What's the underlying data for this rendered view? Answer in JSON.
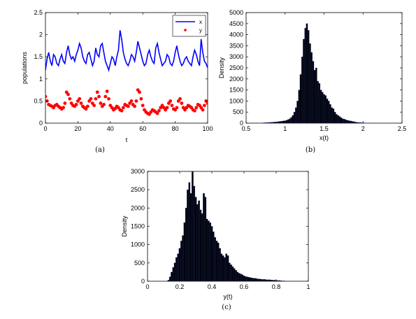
{
  "colors": {
    "x_series": "#0000ff",
    "y_series": "#ff0000",
    "bars": "#000000",
    "bar_edge": "#1f2f8f"
  },
  "chart_data": [
    {
      "panel": "a",
      "caption": "(a)",
      "type": "line",
      "xlabel": "t",
      "ylabel": "populations",
      "xlim": [
        0,
        100
      ],
      "ylim": [
        0,
        2.5
      ],
      "xticks": [
        0,
        20,
        40,
        60,
        80,
        100
      ],
      "yticks": [
        0,
        0.5,
        1,
        1.5,
        2,
        2.5
      ],
      "legend": {
        "placement": "top-right",
        "entries": [
          "x",
          "y"
        ]
      },
      "series": [
        {
          "name": "x",
          "style": "line",
          "x": [
            0,
            1,
            2,
            3,
            4,
            5,
            6,
            7,
            8,
            9,
            10,
            11,
            12,
            13,
            14,
            15,
            16,
            17,
            18,
            19,
            20,
            21,
            22,
            23,
            24,
            25,
            26,
            27,
            28,
            29,
            30,
            31,
            32,
            33,
            34,
            35,
            36,
            37,
            38,
            39,
            40,
            41,
            42,
            43,
            44,
            45,
            46,
            47,
            48,
            49,
            50,
            51,
            52,
            53,
            54,
            55,
            56,
            57,
            58,
            59,
            60,
            61,
            62,
            63,
            64,
            65,
            66,
            67,
            68,
            69,
            70,
            71,
            72,
            73,
            74,
            75,
            76,
            77,
            78,
            79,
            80,
            81,
            82,
            83,
            84,
            85,
            86,
            87,
            88,
            89,
            90,
            91,
            92,
            93,
            94,
            95,
            96,
            97,
            98,
            99,
            100
          ],
          "values": [
            1.2,
            1.45,
            1.6,
            1.4,
            1.3,
            1.55,
            1.5,
            1.35,
            1.3,
            1.45,
            1.55,
            1.4,
            1.35,
            1.6,
            1.75,
            1.55,
            1.45,
            1.5,
            1.4,
            1.55,
            1.65,
            1.8,
            1.7,
            1.5,
            1.4,
            1.35,
            1.55,
            1.6,
            1.45,
            1.3,
            1.4,
            1.7,
            1.55,
            1.5,
            1.75,
            1.8,
            1.6,
            1.4,
            1.3,
            1.2,
            1.35,
            1.5,
            1.45,
            1.3,
            1.5,
            1.65,
            2.1,
            1.9,
            1.6,
            1.45,
            1.35,
            1.3,
            1.4,
            1.55,
            1.5,
            1.4,
            1.6,
            1.85,
            1.7,
            1.55,
            1.4,
            1.3,
            1.35,
            1.55,
            1.65,
            1.5,
            1.4,
            1.35,
            1.7,
            1.8,
            1.6,
            1.45,
            1.3,
            1.35,
            1.4,
            1.55,
            1.5,
            1.35,
            1.3,
            1.4,
            1.6,
            1.75,
            1.55,
            1.4,
            1.3,
            1.35,
            1.45,
            1.5,
            1.4,
            1.35,
            1.3,
            1.5,
            1.65,
            1.55,
            1.4,
            1.3,
            1.9,
            1.6,
            1.4,
            1.35,
            1.25
          ]
        },
        {
          "name": "y",
          "style": "markers",
          "x": [
            0,
            1,
            2,
            3,
            4,
            5,
            6,
            7,
            8,
            9,
            10,
            11,
            12,
            13,
            14,
            15,
            16,
            17,
            18,
            19,
            20,
            21,
            22,
            23,
            24,
            25,
            26,
            27,
            28,
            29,
            30,
            31,
            32,
            33,
            34,
            35,
            36,
            37,
            38,
            39,
            40,
            41,
            42,
            43,
            44,
            45,
            46,
            47,
            48,
            49,
            50,
            51,
            52,
            53,
            54,
            55,
            56,
            57,
            58,
            59,
            60,
            61,
            62,
            63,
            64,
            65,
            66,
            67,
            68,
            69,
            70,
            71,
            72,
            73,
            74,
            75,
            76,
            77,
            78,
            79,
            80,
            81,
            82,
            83,
            84,
            85,
            86,
            87,
            88,
            89,
            90,
            91,
            92,
            93,
            94,
            95,
            96,
            97,
            98,
            99,
            100
          ],
          "values": [
            0.6,
            0.5,
            0.42,
            0.4,
            0.38,
            0.35,
            0.4,
            0.42,
            0.38,
            0.35,
            0.32,
            0.35,
            0.45,
            0.7,
            0.65,
            0.55,
            0.45,
            0.4,
            0.38,
            0.42,
            0.5,
            0.55,
            0.45,
            0.38,
            0.35,
            0.32,
            0.38,
            0.5,
            0.55,
            0.45,
            0.4,
            0.55,
            0.7,
            0.6,
            0.45,
            0.38,
            0.42,
            0.6,
            0.72,
            0.55,
            0.4,
            0.35,
            0.3,
            0.33,
            0.38,
            0.35,
            0.3,
            0.28,
            0.35,
            0.42,
            0.4,
            0.38,
            0.45,
            0.5,
            0.42,
            0.38,
            0.5,
            0.75,
            0.7,
            0.55,
            0.4,
            0.3,
            0.25,
            0.22,
            0.2,
            0.25,
            0.3,
            0.28,
            0.25,
            0.22,
            0.28,
            0.35,
            0.4,
            0.35,
            0.3,
            0.35,
            0.45,
            0.5,
            0.4,
            0.32,
            0.3,
            0.35,
            0.5,
            0.55,
            0.45,
            0.35,
            0.3,
            0.35,
            0.4,
            0.38,
            0.35,
            0.3,
            0.28,
            0.35,
            0.42,
            0.4,
            0.35,
            0.3,
            0.4,
            0.5,
            0.45
          ]
        }
      ]
    },
    {
      "panel": "b",
      "caption": "(b)",
      "type": "bar",
      "xlabel": "x(t)",
      "ylabel": "Density",
      "xlim": [
        0.5,
        2.5
      ],
      "ylim": [
        0,
        5000
      ],
      "xticks": [
        0.5,
        1,
        1.5,
        2,
        2.5
      ],
      "yticks": [
        0,
        500,
        1000,
        1500,
        2000,
        2500,
        3000,
        3500,
        4000,
        4500,
        5000
      ],
      "bin_width": 0.02,
      "x": [
        0.7,
        0.72,
        0.74,
        0.76,
        0.78,
        0.8,
        0.82,
        0.84,
        0.86,
        0.88,
        0.9,
        0.92,
        0.94,
        0.96,
        0.98,
        1.0,
        1.02,
        1.04,
        1.06,
        1.08,
        1.1,
        1.12,
        1.14,
        1.16,
        1.18,
        1.2,
        1.22,
        1.24,
        1.26,
        1.28,
        1.3,
        1.32,
        1.34,
        1.36,
        1.38,
        1.4,
        1.42,
        1.44,
        1.46,
        1.48,
        1.5,
        1.52,
        1.54,
        1.56,
        1.58,
        1.6,
        1.62,
        1.64,
        1.66,
        1.68,
        1.7,
        1.72,
        1.74,
        1.76,
        1.78,
        1.8,
        1.82,
        1.84,
        1.86,
        1.88,
        1.9,
        1.92,
        1.94,
        1.96,
        1.98,
        2.0,
        2.02,
        2.04,
        2.06,
        2.08
      ],
      "values": [
        10,
        15,
        20,
        20,
        30,
        30,
        40,
        40,
        50,
        50,
        60,
        70,
        80,
        90,
        100,
        110,
        130,
        160,
        200,
        260,
        350,
        500,
        700,
        1000,
        1500,
        2200,
        3000,
        3800,
        4300,
        4500,
        4200,
        3600,
        3200,
        2800,
        2400,
        2500,
        1900,
        1800,
        1500,
        1400,
        1300,
        1250,
        1100,
        1000,
        850,
        700,
        650,
        500,
        400,
        350,
        300,
        250,
        200,
        180,
        150,
        130,
        110,
        100,
        80,
        70,
        50,
        40,
        30,
        30,
        20,
        20,
        10,
        10,
        10,
        5
      ]
    },
    {
      "panel": "c",
      "caption": "(c)",
      "type": "bar",
      "xlabel": "y(t)",
      "ylabel": "Density",
      "xlim": [
        0,
        1
      ],
      "ylim": [
        0,
        3000
      ],
      "xticks": [
        0,
        0.2,
        0.4,
        0.6,
        0.8,
        1
      ],
      "yticks": [
        0,
        500,
        1000,
        1500,
        2000,
        2500,
        3000
      ],
      "bin_width": 0.01,
      "x": [
        0.13,
        0.14,
        0.15,
        0.16,
        0.17,
        0.18,
        0.19,
        0.2,
        0.21,
        0.22,
        0.23,
        0.24,
        0.25,
        0.26,
        0.27,
        0.28,
        0.29,
        0.3,
        0.31,
        0.32,
        0.33,
        0.34,
        0.35,
        0.36,
        0.37,
        0.38,
        0.39,
        0.4,
        0.41,
        0.42,
        0.43,
        0.44,
        0.45,
        0.46,
        0.47,
        0.48,
        0.49,
        0.5,
        0.51,
        0.52,
        0.53,
        0.54,
        0.55,
        0.56,
        0.57,
        0.58,
        0.59,
        0.6,
        0.61,
        0.62,
        0.63,
        0.64,
        0.65,
        0.66,
        0.67,
        0.68,
        0.69,
        0.7,
        0.71,
        0.72,
        0.73,
        0.74,
        0.75,
        0.76,
        0.77,
        0.78,
        0.79,
        0.8,
        0.81,
        0.82,
        0.83,
        0.84,
        0.85
      ],
      "values": [
        30,
        120,
        250,
        380,
        500,
        650,
        750,
        900,
        1100,
        1250,
        1600,
        2000,
        2500,
        2700,
        2400,
        3000,
        2600,
        2300,
        2100,
        2200,
        1950,
        1850,
        2400,
        2300,
        1700,
        1650,
        1600,
        1500,
        1350,
        1200,
        1100,
        1050,
        900,
        750,
        700,
        650,
        750,
        700,
        500,
        450,
        400,
        350,
        300,
        250,
        220,
        200,
        180,
        150,
        130,
        120,
        110,
        100,
        90,
        80,
        80,
        70,
        60,
        60,
        50,
        50,
        50,
        40,
        40,
        40,
        35,
        30,
        30,
        25,
        20,
        20,
        15,
        10,
        10
      ]
    }
  ]
}
